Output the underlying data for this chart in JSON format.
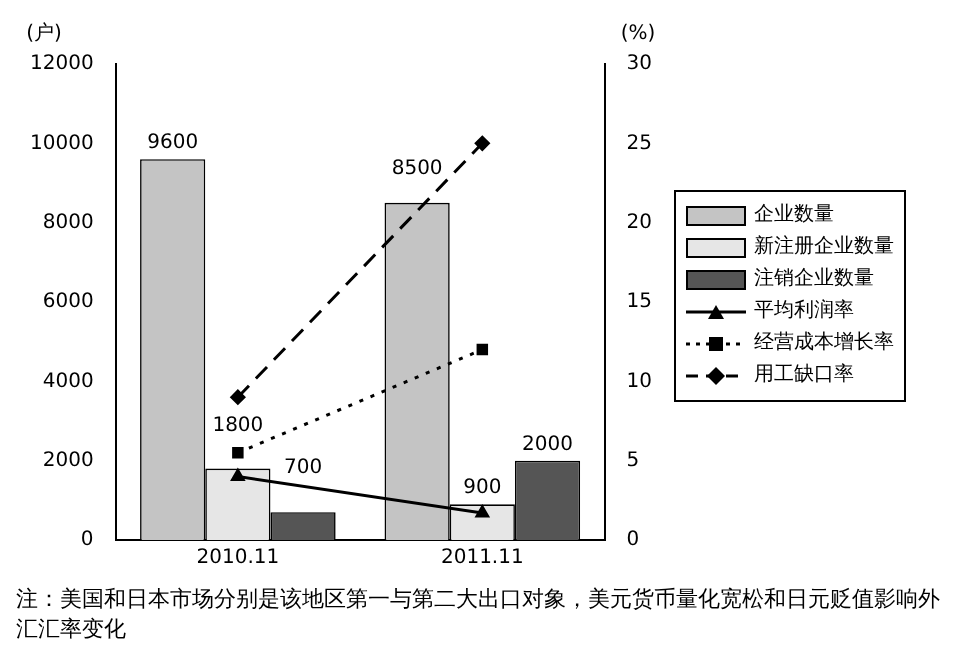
{
  "chart_data": {
    "type": "bar",
    "ylabel": "(户)",
    "y2label": "(%)",
    "categories": [
      "2010.11",
      "2011.11"
    ],
    "series": [
      {
        "name": "企业数量",
        "color": "#c4c4c4",
        "values": [
          9600,
          8500
        ],
        "value_labels": [
          "9600",
          "8500"
        ]
      },
      {
        "name": "新注册企业数量",
        "color": "#e6e6e6",
        "values": [
          1800,
          900
        ],
        "value_labels": [
          "1800",
          "900"
        ]
      },
      {
        "name": "注销企业数量",
        "color": "#555555",
        "values": [
          700,
          2000
        ],
        "value_labels": [
          "700",
          "2000"
        ]
      },
      {
        "name": "平均利润率",
        "type": "line",
        "axis": "y2",
        "color": "#000000",
        "marker": "triangle",
        "line_style": "solid",
        "values": [
          4,
          1.7
        ]
      },
      {
        "name": "经营成本增长率",
        "type": "line",
        "axis": "y2",
        "color": "#000000",
        "marker": "square",
        "line_style": "dotted",
        "values": [
          5.5,
          12
        ]
      },
      {
        "name": "用工缺口率",
        "type": "line",
        "axis": "y2",
        "color": "#000000",
        "marker": "diamond",
        "line_style": "dashed",
        "values": [
          9,
          25
        ]
      }
    ],
    "ylim": [
      0,
      12000
    ],
    "yticks": [
      0,
      2000,
      4000,
      6000,
      8000,
      10000,
      12000
    ],
    "y2lim": [
      0,
      30
    ],
    "y2ticks": [
      0,
      5,
      10,
      15,
      20,
      25,
      30
    ],
    "legend": "right",
    "grid": false,
    "annotations": [
      "注：美国和日本市场分别是该地区第一与第二大出口对象，美元货币量化宽松和日元贬值影响外汇汇率变化"
    ]
  }
}
